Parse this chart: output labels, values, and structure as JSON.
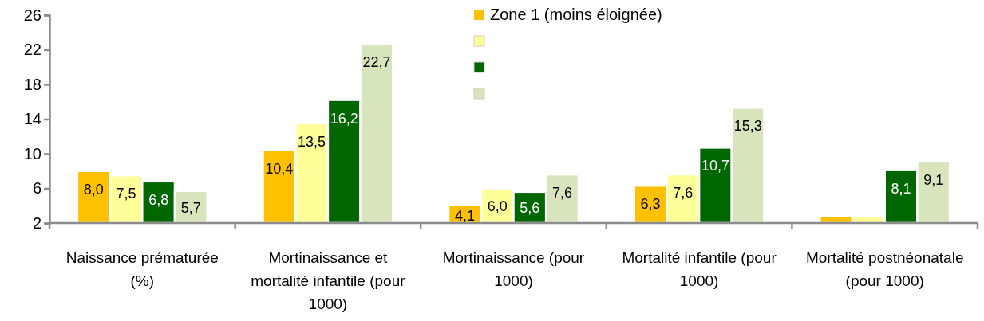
{
  "chart_data": {
    "type": "bar",
    "categories": [
      "Naissance prématurée (%)",
      "Mortinaissance et mortalité infantile (pour 1000)",
      "Mortinaissance (pour 1000)",
      "Mortalité infantile (pour 1000)",
      "Mortalité postnéonatale (pour 1000)"
    ],
    "series": [
      {
        "name": "Zone 1 (moins éloignée)",
        "color": "#ffc000",
        "values": [
          8.0,
          10.4,
          4.1,
          6.3,
          2.8
        ],
        "value_labels": [
          "8,0",
          "10,4",
          "4,1",
          "6,3",
          null
        ]
      },
      {
        "color": "#ffff99",
        "values": [
          7.5,
          13.5,
          6.0,
          7.6,
          2.8
        ],
        "value_labels": [
          "7,5",
          "13,5",
          "6,0",
          "7,6",
          null
        ]
      },
      {
        "color": "#006600",
        "values": [
          6.8,
          16.2,
          5.6,
          10.7,
          8.1
        ],
        "value_labels": [
          "6,8",
          "16,2",
          "5,6",
          "10,7",
          "8,1"
        ]
      },
      {
        "color": "#d8e4bc",
        "values": [
          5.7,
          22.7,
          7.6,
          15.3,
          9.1
        ],
        "value_labels": [
          "5,7",
          "22,7",
          "7,6",
          "15,3",
          "9,1"
        ]
      }
    ],
    "ylim": [
      2,
      26
    ],
    "yticks": [
      2,
      6,
      10,
      14,
      18,
      22,
      26
    ],
    "grid": false,
    "legend": "top right"
  }
}
